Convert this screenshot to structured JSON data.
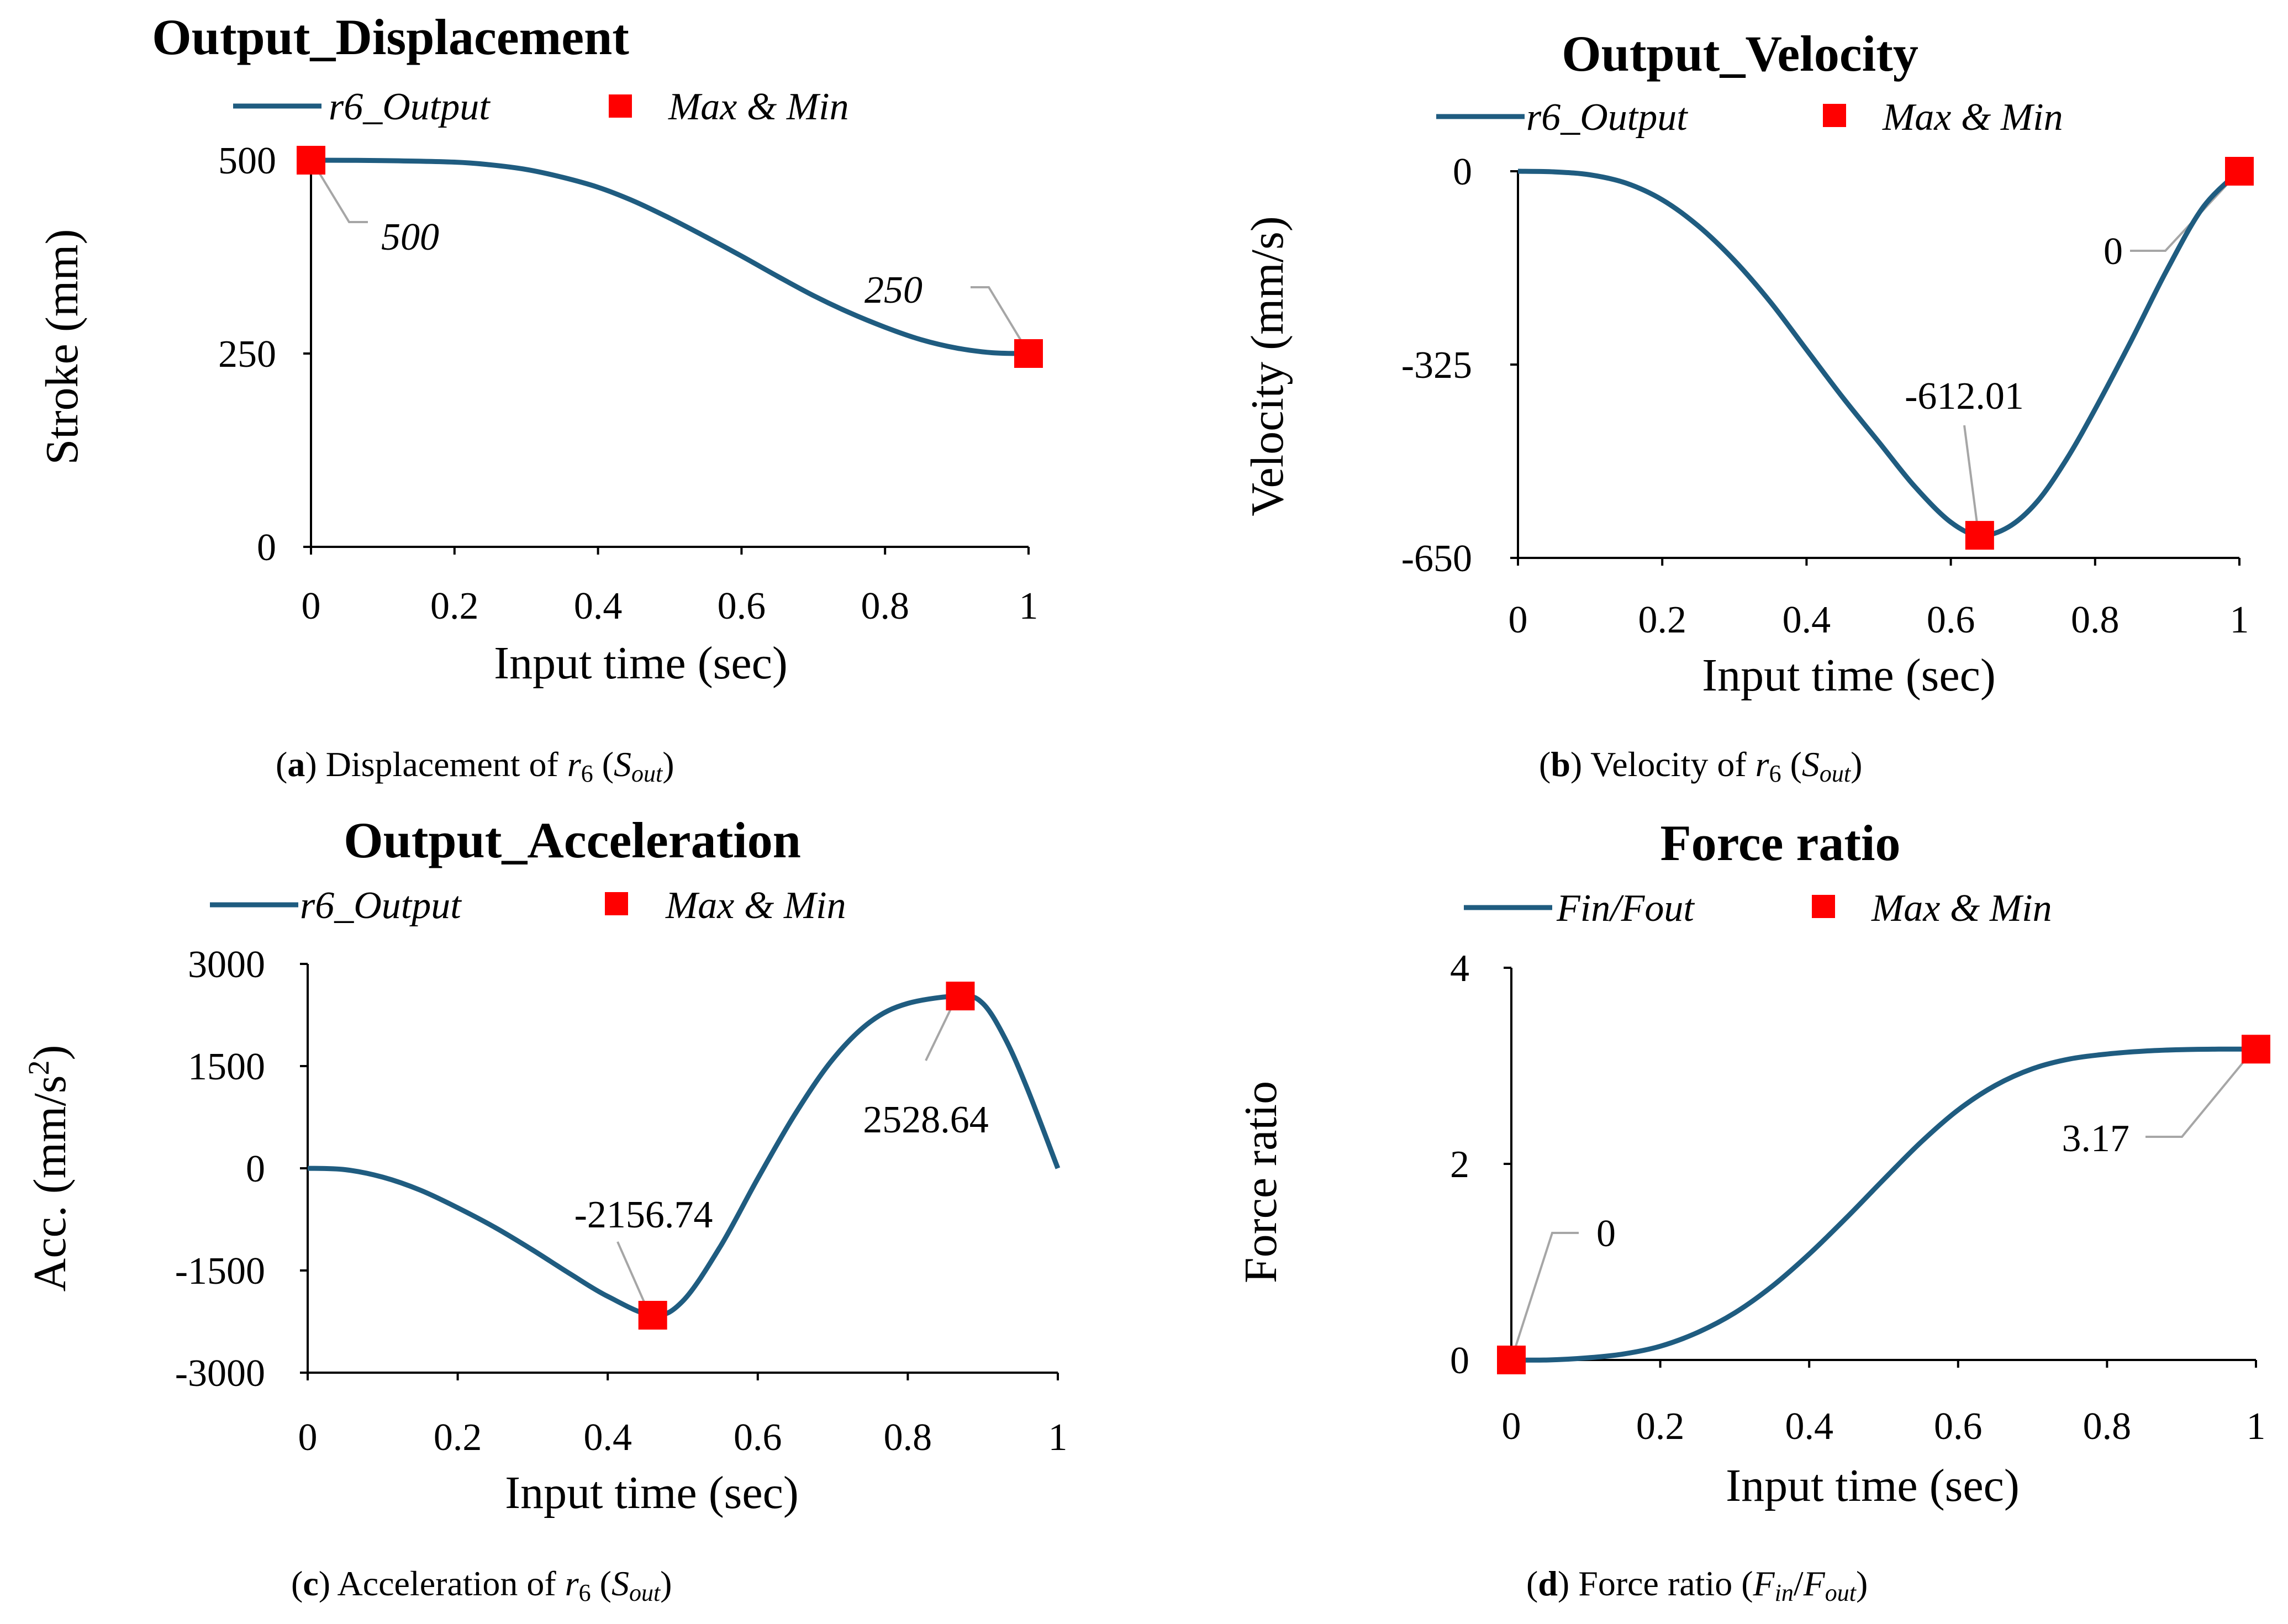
{
  "chart_data": [
    {
      "type": "line",
      "title": "Output_Displacement",
      "xlabel": "Input time (sec)",
      "ylabel": "Stroke (mm)",
      "xlim": [
        0,
        1
      ],
      "ylim": [
        0,
        500
      ],
      "xticks": [
        0,
        0.2,
        0.4,
        0.6,
        0.8,
        1
      ],
      "xtick_labels": [
        "0",
        "0.2",
        "0.4",
        "0.6",
        "0.8",
        "1"
      ],
      "yticks": [
        0,
        250,
        500
      ],
      "ytick_labels": [
        "0",
        "250",
        "500"
      ],
      "series": [
        {
          "name": "r6_Output",
          "color": "#1f5c80",
          "x": [
            0,
            0.1,
            0.2,
            0.25,
            0.3,
            0.35,
            0.4,
            0.45,
            0.5,
            0.55,
            0.6,
            0.65,
            0.7,
            0.75,
            0.8,
            0.85,
            0.9,
            0.95,
            1.0
          ],
          "y": [
            500,
            499.5,
            497.5,
            494,
            488,
            478,
            465,
            447,
            425,
            401,
            376,
            350,
            325,
            303,
            284,
            268,
            257,
            251,
            250
          ]
        }
      ],
      "legend": [
        {
          "label": "r6_Output",
          "kind": "line",
          "color": "#1f5c80"
        },
        {
          "label": "Max & Min",
          "kind": "marker",
          "color": "#ff0000"
        }
      ],
      "markers": [
        {
          "x": 0,
          "y": 500,
          "label": "500"
        },
        {
          "x": 1,
          "y": 250,
          "label": "250"
        }
      ],
      "caption": {
        "letter": "a",
        "text": "Displacement of r6 (Sout)",
        "pre": ") Displacement of ",
        "var": "r",
        "var_sub": "6",
        "mid": " (",
        "var2": "S",
        "var2_sub": "out",
        "post": ")"
      }
    },
    {
      "type": "line",
      "title": "Output_Velocity",
      "xlabel": "Input time (sec)",
      "ylabel": "Velocity (mm/s)",
      "xlim": [
        0,
        1
      ],
      "ylim": [
        -650,
        0
      ],
      "xticks": [
        0,
        0.2,
        0.4,
        0.6,
        0.8,
        1
      ],
      "xtick_labels": [
        "0",
        "0.2",
        "0.4",
        "0.6",
        "0.8",
        "1"
      ],
      "yticks": [
        0,
        -325,
        -650
      ],
      "ytick_labels": [
        "0",
        "-325",
        "-650"
      ],
      "series": [
        {
          "name": "r6_Output",
          "color": "#1f5c80",
          "x": [
            0,
            0.05,
            0.1,
            0.15,
            0.2,
            0.25,
            0.3,
            0.35,
            0.4,
            0.45,
            0.5,
            0.55,
            0.6,
            0.64,
            0.68,
            0.72,
            0.76,
            0.8,
            0.85,
            0.9,
            0.95,
            1.0
          ],
          "y": [
            0,
            -1,
            -6,
            -20,
            -48,
            -92,
            -150,
            -220,
            -300,
            -380,
            -455,
            -530,
            -590,
            -612.01,
            -598,
            -555,
            -485,
            -400,
            -285,
            -165,
            -60,
            0
          ]
        }
      ],
      "legend": [
        {
          "label": "r6_Output",
          "kind": "line",
          "color": "#1f5c80"
        },
        {
          "label": "Max & Min",
          "kind": "marker",
          "color": "#ff0000"
        }
      ],
      "markers": [
        {
          "x": 0.64,
          "y": -612.01,
          "label": "-612.01"
        },
        {
          "x": 1,
          "y": 0,
          "label": "0"
        }
      ],
      "caption": {
        "letter": "b",
        "text": "Velocity of r6 (Sout)",
        "pre": ") Velocity of ",
        "var": "r",
        "var_sub": "6",
        "mid": " (",
        "var2": "S",
        "var2_sub": "out",
        "post": ")"
      }
    },
    {
      "type": "line",
      "title": "Output_Acceleration",
      "xlabel": "Input time (sec)",
      "ylabel": "Acc. (mm/s²)",
      "ylabel_base": "Acc. (mm/s",
      "ylabel_sup": "2",
      "ylabel_end": ")",
      "xlim": [
        0,
        1
      ],
      "ylim": [
        -3000,
        3000
      ],
      "xticks": [
        0,
        0.2,
        0.4,
        0.6,
        0.8,
        1
      ],
      "xtick_labels": [
        "0",
        "0.2",
        "0.4",
        "0.6",
        "0.8",
        "1"
      ],
      "yticks": [
        3000,
        1500,
        0,
        -1500,
        -3000
      ],
      "ytick_labels": [
        "3000",
        "1500",
        "0",
        "-1500",
        "-3000"
      ],
      "series": [
        {
          "name": "r6_Output",
          "color": "#1f5c80",
          "x": [
            0,
            0.05,
            0.1,
            0.15,
            0.2,
            0.25,
            0.3,
            0.35,
            0.4,
            0.46,
            0.5,
            0.55,
            0.6,
            0.65,
            0.7,
            0.75,
            0.8,
            0.87,
            0.9,
            0.93,
            0.96,
            1.0
          ],
          "y": [
            0,
            -20,
            -130,
            -320,
            -580,
            -870,
            -1200,
            -1550,
            -1880,
            -2156.74,
            -1950,
            -1150,
            -150,
            800,
            1600,
            2150,
            2420,
            2528.64,
            2420,
            1900,
            1150,
            0
          ]
        }
      ],
      "legend": [
        {
          "label": "r6_Output",
          "kind": "line",
          "color": "#1f5c80"
        },
        {
          "label": "Max & Min",
          "kind": "marker",
          "color": "#ff0000"
        }
      ],
      "markers": [
        {
          "x": 0.46,
          "y": -2156.74,
          "label": "-2156.74"
        },
        {
          "x": 0.87,
          "y": 2528.64,
          "label": "2528.64"
        }
      ],
      "caption": {
        "letter": "c",
        "text": "Acceleration of r6 (Sout)",
        "pre": ") Acceleration of ",
        "var": "r",
        "var_sub": "6",
        "mid": " (",
        "var2": "S",
        "var2_sub": "out",
        "post": ")"
      }
    },
    {
      "type": "line",
      "title": "Force ratio",
      "xlabel": "Input time (sec)",
      "ylabel": "Force ratio",
      "xlim": [
        0,
        1
      ],
      "ylim": [
        0,
        4
      ],
      "xticks": [
        0,
        0.2,
        0.4,
        0.6,
        0.8,
        1
      ],
      "xtick_labels": [
        "0",
        "0.2",
        "0.4",
        "0.6",
        "0.8",
        "1"
      ],
      "yticks": [
        0,
        2,
        4
      ],
      "ytick_labels": [
        "0",
        "2",
        "4"
      ],
      "series": [
        {
          "name": "Fin/Fout",
          "color": "#1f5c80",
          "x": [
            0,
            0.05,
            0.1,
            0.15,
            0.2,
            0.25,
            0.3,
            0.35,
            0.4,
            0.45,
            0.5,
            0.55,
            0.6,
            0.65,
            0.7,
            0.75,
            0.8,
            0.85,
            0.9,
            0.95,
            1.0
          ],
          "y": [
            0,
            0,
            0.02,
            0.06,
            0.14,
            0.28,
            0.48,
            0.75,
            1.08,
            1.45,
            1.84,
            2.22,
            2.55,
            2.8,
            2.97,
            3.07,
            3.12,
            3.15,
            3.165,
            3.17,
            3.17
          ]
        }
      ],
      "legend": [
        {
          "label": "Fin/Fout",
          "kind": "line",
          "color": "#1f5c80"
        },
        {
          "label": "Max & Min",
          "kind": "marker",
          "color": "#ff0000"
        }
      ],
      "markers": [
        {
          "x": 0,
          "y": 0,
          "label": "0"
        },
        {
          "x": 1,
          "y": 3.17,
          "label": "3.17"
        }
      ],
      "caption": {
        "letter": "d",
        "text": "Force ratio (Fin/Fout)",
        "pre": ") Force ratio (",
        "var": "F",
        "var_sub": "in",
        "mid": "/",
        "var2": "F",
        "var2_sub": "out",
        "post": ")"
      }
    }
  ],
  "colors": {
    "line": "#1f5c80",
    "marker": "#ff0000",
    "leader": "#a6a6a6"
  }
}
